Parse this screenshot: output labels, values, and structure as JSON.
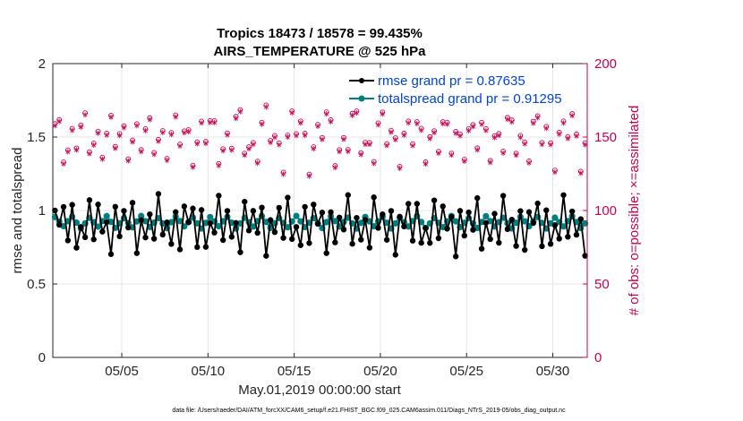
{
  "chart_data": {
    "type": "line",
    "title": "Tropics 18473 / 18578 = 99.435%",
    "subtitle": "AIRS_TEMPERATURE @ 525 hPa",
    "xlabel": "May.01,2019 00:00:00 start",
    "ylabel": "rmse and totalspread",
    "ylabel_right": "# of obs: o=possible; ×=assimilated",
    "xlim": [
      1,
      32
    ],
    "ylim": [
      0,
      2
    ],
    "ylim_right": [
      0,
      200
    ],
    "x_ticks": [
      5,
      10,
      15,
      20,
      25,
      30
    ],
    "x_tick_labels": [
      "05/05",
      "05/10",
      "05/15",
      "05/20",
      "05/25",
      "05/30"
    ],
    "y_ticks": [
      0,
      0.5,
      1,
      1.5,
      2
    ],
    "y_tick_labels": [
      "0",
      "0.5",
      "1",
      "1.5",
      "2"
    ],
    "y_right_ticks": [
      0,
      50,
      100,
      150,
      200
    ],
    "y_right_tick_labels": [
      "0",
      "50",
      "100",
      "150",
      "200"
    ],
    "legend": [
      {
        "label": "rmse grand pr = 0.87635",
        "color": "#000000"
      },
      {
        "label": "totalspread grand pr = 0.91295",
        "color": "#008080"
      }
    ],
    "footnote": "data file: /Users/raeder/DAI/ATM_forcXX/CAM6_setup/f.e21.FHIST_BGC.f09_025.CAM6assim.011/Diags_NTrS_2019-05/obs_diag_output.nc",
    "colors": {
      "rmse": "#000000",
      "spread": "#008080",
      "obs": "#cc0052",
      "axis": "#262626"
    }
  }
}
